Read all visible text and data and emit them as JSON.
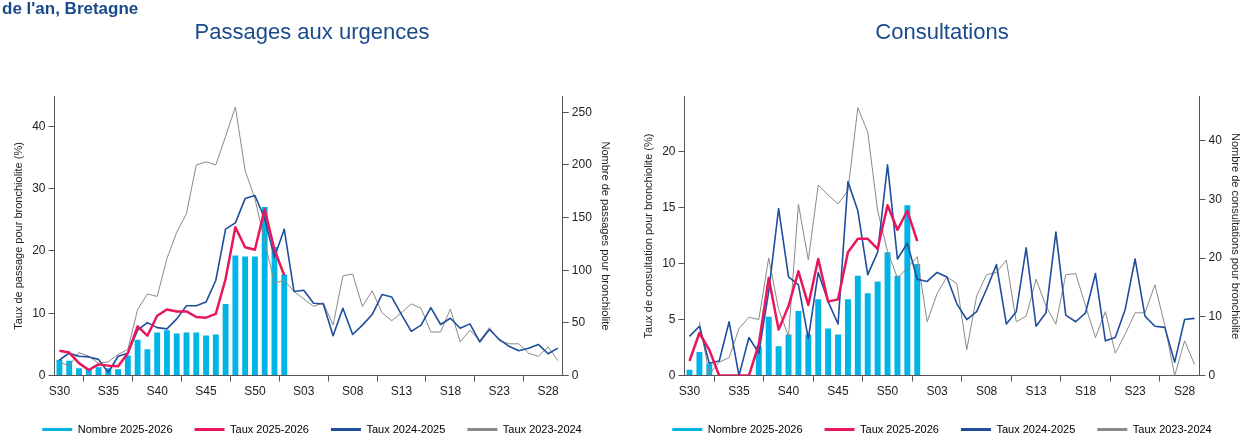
{
  "chart_data": [
    {
      "type": "line",
      "title": "Passages aux urgences",
      "annotations": [
        "de l'an, Bretagne"
      ],
      "ylabel": "Taux de passage pour bronchiolite (%)",
      "y2label": "Nombre de passages pour bronchiolite",
      "categories": [
        "S30",
        null,
        null,
        null,
        null,
        "S35",
        null,
        null,
        null,
        null,
        "S40",
        null,
        null,
        null,
        null,
        "S45",
        null,
        null,
        null,
        null,
        "S50",
        null,
        null,
        null,
        null,
        "S03",
        null,
        null,
        null,
        null,
        "S08",
        null,
        null,
        null,
        null,
        "S13",
        null,
        null,
        null,
        null,
        "S18",
        null,
        null,
        null,
        null,
        "S23",
        null,
        null,
        null,
        null,
        "S28",
        null
      ],
      "series": [
        {
          "name": "Nombre 2025-2026",
          "type": "bar",
          "axis": "y2",
          "color": "#00b4e6",
          "values": [
            15,
            14,
            7,
            6,
            8,
            7,
            6,
            19,
            34,
            25,
            41,
            43,
            40,
            41,
            41,
            38,
            39,
            68,
            114,
            113,
            113,
            160,
            122,
            96,
            null,
            null,
            null,
            null,
            null,
            null,
            null,
            null,
            null,
            null,
            null,
            null,
            null,
            null,
            null,
            null,
            null,
            null,
            null,
            null,
            null,
            null,
            null,
            null,
            null,
            null,
            null,
            null
          ]
        },
        {
          "name": "Taux 2025-2026",
          "color": "#e8175d",
          "values": [
            4.0,
            3.7,
            2.0,
            0.9,
            1.8,
            1.6,
            1.5,
            3.6,
            7.9,
            6.4,
            9.6,
            10.6,
            10.3,
            10.3,
            9.4,
            9.3,
            9.9,
            15.5,
            23.8,
            20.6,
            20.2,
            26.7,
            20.2,
            16.1,
            null,
            null,
            null,
            null,
            null,
            null,
            null,
            null,
            null,
            null,
            null,
            null,
            null,
            null,
            null,
            null,
            null,
            null,
            null,
            null,
            null,
            null,
            null,
            null,
            null,
            null,
            null,
            null
          ]
        },
        {
          "name": "Taux 2024-2025",
          "color": "#1f4e9c",
          "values": [
            2.5,
            3.6,
            3.1,
            3.0,
            2.6,
            0.5,
            3.1,
            3.6,
            7.3,
            8.5,
            7.7,
            7.5,
            9.1,
            11.2,
            11.2,
            11.8,
            15.3,
            23.5,
            24.5,
            28.4,
            28.9,
            25.2,
            19.0,
            23.5,
            13.5,
            13.7,
            11.6,
            11.5,
            6.4,
            10.8,
            6.6,
            8.1,
            9.8,
            13.0,
            12.6,
            9.8,
            7.1,
            8.1,
            10.9,
            8.2,
            9.2,
            7.6,
            8.3,
            5.4,
            7.4,
            5.8,
            4.7,
            4.0,
            4.4,
            5.0,
            3.5,
            4.4
          ]
        },
        {
          "name": "Taux 2023-2024",
          "color": "#8a8a8a",
          "values": [
            2.1,
            1.6,
            3.7,
            3.1,
            2.0,
            2.2,
            3.4,
            4.2,
            10.6,
            13.1,
            12.7,
            18.8,
            23.0,
            26.0,
            33.8,
            34.3,
            33.8,
            38.4,
            43.1,
            32.9,
            28.4,
            21.5,
            14.8,
            15.3,
            13.5,
            12.3,
            11.1,
            11.7,
            8.1,
            16.0,
            16.3,
            11.1,
            13.6,
            10.1,
            8.8,
            10.1,
            11.5,
            10.8,
            7.0,
            7.0,
            10.7,
            5.4,
            7.3,
            5.6,
            7.7,
            5.6,
            5.1,
            5.1,
            3.6,
            3.1,
            4.6,
            2.4
          ]
        }
      ],
      "ylim": [
        0,
        44.8
      ],
      "yticks": [
        0,
        10,
        20,
        30,
        40
      ],
      "y2lim": [
        0,
        265
      ],
      "y2ticks": [
        0,
        50,
        100,
        150,
        200,
        250
      ],
      "grid": false,
      "legend": "bottom",
      "marker": "none"
    },
    {
      "type": "line",
      "title": "Consultations",
      "ylabel": "Taux de consultation pour bronchiolite (%)",
      "y2label": "Nombre de consultations pour bronchiolite",
      "categories": [
        "S30",
        null,
        null,
        null,
        null,
        "S35",
        null,
        null,
        null,
        null,
        "S40",
        null,
        null,
        null,
        null,
        "S45",
        null,
        null,
        null,
        null,
        "S50",
        null,
        null,
        null,
        null,
        "S03",
        null,
        null,
        null,
        null,
        "S08",
        null,
        null,
        null,
        null,
        "S13",
        null,
        null,
        null,
        null,
        "S18",
        null,
        null,
        null,
        null,
        "S23",
        null,
        null,
        null,
        null,
        "S28",
        null
      ],
      "series": [
        {
          "name": "Nombre 2025-2026",
          "type": "bar",
          "axis": "y2",
          "color": "#00b4e6",
          "values": [
            1,
            4,
            2,
            0,
            0,
            0,
            0,
            5,
            10,
            5,
            7,
            11,
            7,
            13,
            8,
            7,
            13,
            17,
            14,
            16,
            21,
            17,
            29,
            19,
            null,
            null,
            null,
            null,
            null,
            null,
            null,
            null,
            null,
            null,
            null,
            null,
            null,
            null,
            null,
            null,
            null,
            null,
            null,
            null,
            null,
            null,
            null,
            null,
            null,
            null,
            null,
            null
          ]
        },
        {
          "name": "Taux 2025-2026",
          "color": "#e8175d",
          "values": [
            1.3,
            3.8,
            2.3,
            0,
            0,
            0,
            0,
            2.8,
            8.7,
            4.1,
            6.2,
            9.3,
            6.3,
            10.4,
            6.6,
            6.8,
            11.0,
            12.2,
            12.2,
            11.3,
            15.2,
            13.0,
            14.7,
            12.0,
            null,
            null,
            null,
            null,
            null,
            null,
            null,
            null,
            null,
            null,
            null,
            null,
            null,
            null,
            null,
            null,
            null,
            null,
            null,
            null,
            null,
            null,
            null,
            null,
            null,
            null,
            null,
            null
          ]
        },
        {
          "name": "Taux 2024-2025",
          "color": "#1f4e9c",
          "values": [
            3.5,
            4.4,
            1.1,
            1.3,
            4.8,
            0,
            3.4,
            2.0,
            7.5,
            14.9,
            8.8,
            8.1,
            3.3,
            9.2,
            6.6,
            4.6,
            17.3,
            14.7,
            9.0,
            11.0,
            18.8,
            10.4,
            11.8,
            8.6,
            8.4,
            9.2,
            8.8,
            6.4,
            5.0,
            5.7,
            7.7,
            9.9,
            4.6,
            5.7,
            11.4,
            4.4,
            5.6,
            12.8,
            5.4,
            4.8,
            5.6,
            9.1,
            3.1,
            3.4,
            5.9,
            10.4,
            5.3,
            4.4,
            4.3,
            1.2,
            5.0,
            5.1
          ]
        },
        {
          "name": "Taux 2023-2024",
          "color": "#8a8a8a",
          "values": [
            null,
            4.8,
            0.1,
            1.2,
            1.6,
            4.2,
            5.2,
            5.0,
            10.5,
            5.9,
            3.5,
            15.3,
            10.3,
            17.0,
            16.1,
            15.3,
            16.5,
            23.9,
            21.7,
            14.7,
            11.1,
            8.7,
            9.6,
            10.6,
            4.8,
            7.3,
            8.8,
            8.2,
            2.3,
            7.1,
            9.0,
            9.2,
            10.3,
            4.8,
            5.3,
            8.6,
            6.2,
            4.6,
            9.0,
            9.1,
            6.2,
            3.4,
            5.7,
            2.0,
            3.7,
            5.6,
            5.6,
            8.1,
            4.5,
            0,
            3.1,
            1.0
          ]
        }
      ],
      "ylim": [
        0,
        24.9
      ],
      "yticks": [
        0,
        5,
        10,
        15,
        20
      ],
      "y2lim": [
        0,
        47.5
      ],
      "y2ticks": [
        0,
        10,
        20,
        30,
        40
      ],
      "grid": false,
      "legend": "bottom",
      "marker": "none"
    }
  ]
}
